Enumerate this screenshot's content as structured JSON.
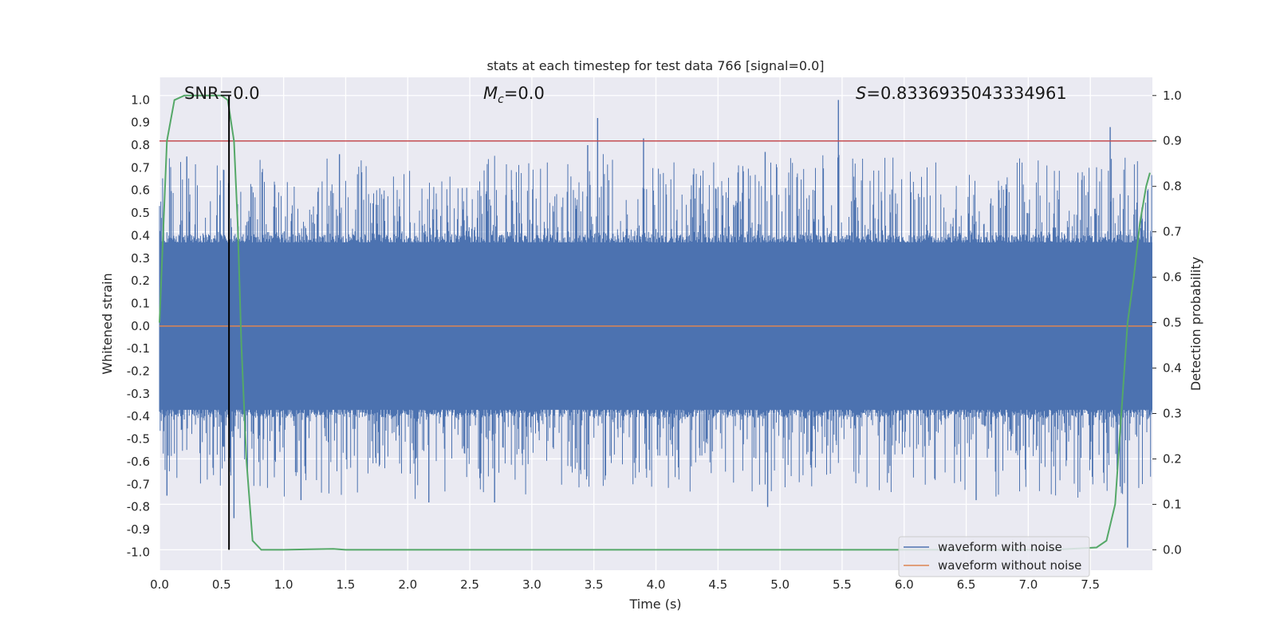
{
  "chart_data": {
    "type": "line",
    "title": "stats at each timestep for test data 766 [signal=0.0]",
    "xlabel": "Time (s)",
    "ylabel": "Whitened strain",
    "y2label": "Detection probability",
    "xlim": [
      0.0,
      8.0
    ],
    "ylim": [
      -1.08,
      1.1
    ],
    "y2lim": [
      -0.045,
      1.04
    ],
    "x_ticks": [
      "0.0",
      "0.5",
      "1.0",
      "1.5",
      "2.0",
      "2.5",
      "3.0",
      "3.5",
      "4.0",
      "4.5",
      "5.0",
      "5.5",
      "6.0",
      "6.5",
      "7.0",
      "7.5"
    ],
    "y_ticks": [
      "-1.0",
      "-0.9",
      "-0.8",
      "-0.7",
      "-0.6",
      "-0.5",
      "-0.4",
      "-0.3",
      "-0.2",
      "-0.1",
      "0.0",
      "0.1",
      "0.2",
      "0.3",
      "0.4",
      "0.5",
      "0.6",
      "0.7",
      "0.8",
      "0.9",
      "1.0"
    ],
    "y2_ticks": [
      "0.0",
      "0.1",
      "0.2",
      "0.3",
      "0.4",
      "0.5",
      "0.6",
      "0.7",
      "0.8",
      "0.9",
      "1.0"
    ],
    "grid": true,
    "annotations": {
      "snr": "SNR=0.0",
      "mc_symbol": "M",
      "mc_sub": "c",
      "mc_value": "=0.0",
      "s_symbol": "S",
      "s_value": "=0.8336935043334961"
    },
    "threshold": {
      "value": 0.9,
      "axis": "y2"
    },
    "marker_time": 0.56,
    "noise": {
      "typical_amplitude": 0.39,
      "max": 1.0,
      "min": -0.98,
      "samples": 1600
    },
    "spikes": [
      {
        "t": 3.53,
        "v": 0.92
      },
      {
        "t": 3.45,
        "v": 0.8
      },
      {
        "t": 3.9,
        "v": 0.83
      },
      {
        "t": 5.47,
        "v": 1.0
      },
      {
        "t": 7.66,
        "v": 0.88
      },
      {
        "t": 1.45,
        "v": 0.76
      },
      {
        "t": 4.88,
        "v": 0.77
      },
      {
        "t": 0.22,
        "v": 0.75
      },
      {
        "t": 7.8,
        "v": -0.98
      },
      {
        "t": 4.9,
        "v": -0.8
      },
      {
        "t": 0.6,
        "v": -0.85
      },
      {
        "t": 2.7,
        "v": -0.78
      },
      {
        "t": 2.17,
        "v": -0.78
      },
      {
        "t": 6.58,
        "v": -0.77
      },
      {
        "t": 1.14,
        "v": -0.77
      },
      {
        "t": 0.06,
        "v": -0.75
      }
    ],
    "series": [
      {
        "name": "waveform with noise",
        "color": "#4c72b0",
        "axis": "y"
      },
      {
        "name": "waveform without noise",
        "color": "#dd8452",
        "axis": "y",
        "values": [
          0.0,
          0.0
        ]
      },
      {
        "name": "detection probability",
        "color": "#55a868",
        "axis": "y2",
        "x": [
          0.0,
          0.06,
          0.12,
          0.2,
          0.35,
          0.5,
          0.55,
          0.6,
          0.63,
          0.66,
          0.7,
          0.75,
          0.82,
          1.0,
          1.4,
          1.5,
          3.0,
          5.0,
          6.5,
          7.2,
          7.55,
          7.63,
          7.7,
          7.75,
          7.8,
          7.85,
          7.9,
          7.95,
          7.98
        ],
        "values": [
          0.5,
          0.9,
          0.99,
          1.0,
          1.0,
          1.0,
          0.99,
          0.9,
          0.72,
          0.45,
          0.2,
          0.02,
          0.0,
          0.0,
          0.002,
          0.0,
          0.0,
          0.0,
          0.0,
          0.0,
          0.005,
          0.02,
          0.1,
          0.3,
          0.5,
          0.6,
          0.72,
          0.8,
          0.83
        ]
      }
    ],
    "legend": {
      "position": "bottom-right",
      "entries": [
        {
          "label": "waveform with noise",
          "color": "#4c72b0"
        },
        {
          "label": "waveform without noise",
          "color": "#dd8452"
        }
      ]
    }
  }
}
